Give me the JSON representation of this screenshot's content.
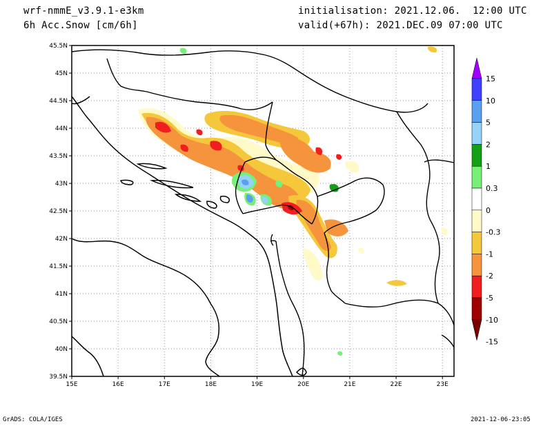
{
  "header": {
    "model": "wrf-nmmE_v3.9.1-e3km",
    "field": "6h Acc.Snow [cm/6h]",
    "init": "initialisation: 2021.12.06.  12:00 UTC",
    "valid": "valid(+67h): 2021.DEC.09 07:00 UTC"
  },
  "footer": {
    "credit": "GrADS: COLA/IGES",
    "timestamp": "2021-12-06-23:05"
  },
  "axes": {
    "lat_labels": [
      "45.5N",
      "45N",
      "44.5N",
      "44N",
      "43.5N",
      "43N",
      "42.5N",
      "42N",
      "41.5N",
      "41N",
      "40.5N",
      "40N",
      "39.5N"
    ],
    "lon_labels": [
      "15E",
      "16E",
      "17E",
      "18E",
      "19E",
      "20E",
      "21E",
      "22E",
      "23E"
    ]
  },
  "colorbar": {
    "labels": [
      "15",
      "10",
      "5",
      "2",
      "1",
      "0.3",
      "0",
      "-0.3",
      "-1",
      "-2",
      "-5",
      "-10",
      "-15"
    ],
    "colors": [
      "#a000ff",
      "#4040ff",
      "#5aa0f0",
      "#96d2fa",
      "#14a014",
      "#78f078",
      "#ffffff",
      "#fffac8",
      "#f5c83c",
      "#f5943c",
      "#f01e1e",
      "#a00000",
      "#780000"
    ]
  },
  "chart_data": {
    "type": "heatmap",
    "lon_range": [
      15,
      23.25
    ],
    "lat_range": [
      39.5,
      45.5
    ],
    "levels": [
      -15,
      -10,
      -5,
      -2,
      -1,
      -0.3,
      0,
      0.3,
      1,
      2,
      5,
      10,
      15
    ],
    "legend": "right"
  }
}
